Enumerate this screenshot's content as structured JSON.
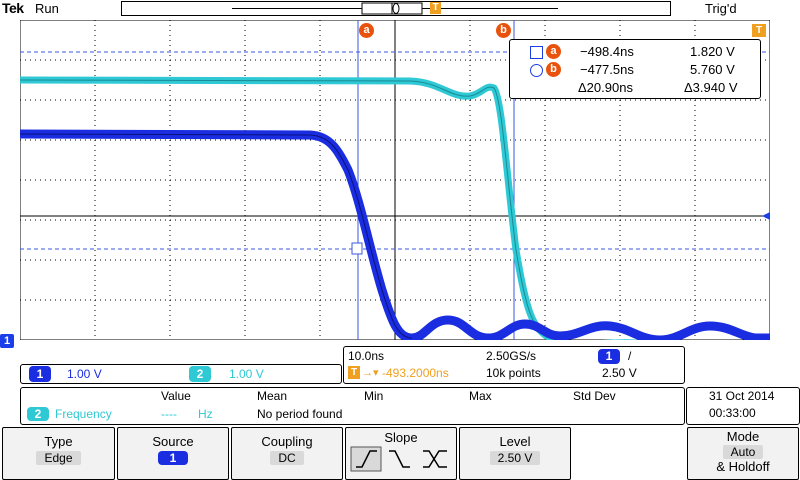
{
  "header": {
    "brand": "Tek",
    "run_state": "Run",
    "trigger_state": "Trig'd",
    "trigger_marker": "T"
  },
  "cursor_markers": {
    "a": "a",
    "b": "b"
  },
  "cursor_readout": {
    "a_time": "−498.4ns",
    "a_value": "1.820 V",
    "b_time": "−477.5ns",
    "b_value": "5.760 V",
    "delta_time": "Δ20.90ns",
    "delta_value": "Δ3.940 V"
  },
  "channel_marker": "1",
  "channels": [
    {
      "num": "1",
      "scale": "1.00 V",
      "color": "#1a2de0"
    },
    {
      "num": "2",
      "scale": "1.00 V",
      "color": "#2ec9d4"
    }
  ],
  "timebase": {
    "time_div": "10.0ns",
    "sample_rate": "2.50GS/s",
    "trigger_channel": "1",
    "trigger_slope_glyph": "/",
    "trigger_position": "-493.2000ns",
    "record_length": "10k points",
    "trigger_level": "2.50 V",
    "position_marker": "T"
  },
  "measurement": {
    "headers": {
      "value": "Value",
      "mean": "Mean",
      "min": "Min",
      "max": "Max",
      "std": "Std Dev"
    },
    "source": "2",
    "name": "Frequency",
    "value": "----",
    "unit": "Hz",
    "status": "No period found"
  },
  "datetime": {
    "date": "31 Oct  2014",
    "time": "00:33:00"
  },
  "menu": {
    "type": {
      "label": "Type",
      "value": "Edge"
    },
    "source": {
      "label": "Source",
      "value": "1"
    },
    "coupling": {
      "label": "Coupling",
      "value": "DC"
    },
    "slope": {
      "label": "Slope"
    },
    "level": {
      "label": "Level",
      "value": "2.50 V"
    },
    "mode": {
      "label": "Mode",
      "value": "Auto",
      "value2": "& Holdoff"
    }
  },
  "colors": {
    "ch1": "#1a2de0",
    "ch2": "#2ec9d4",
    "cursor": "#e8520c",
    "trigger": "#f0a020"
  }
}
